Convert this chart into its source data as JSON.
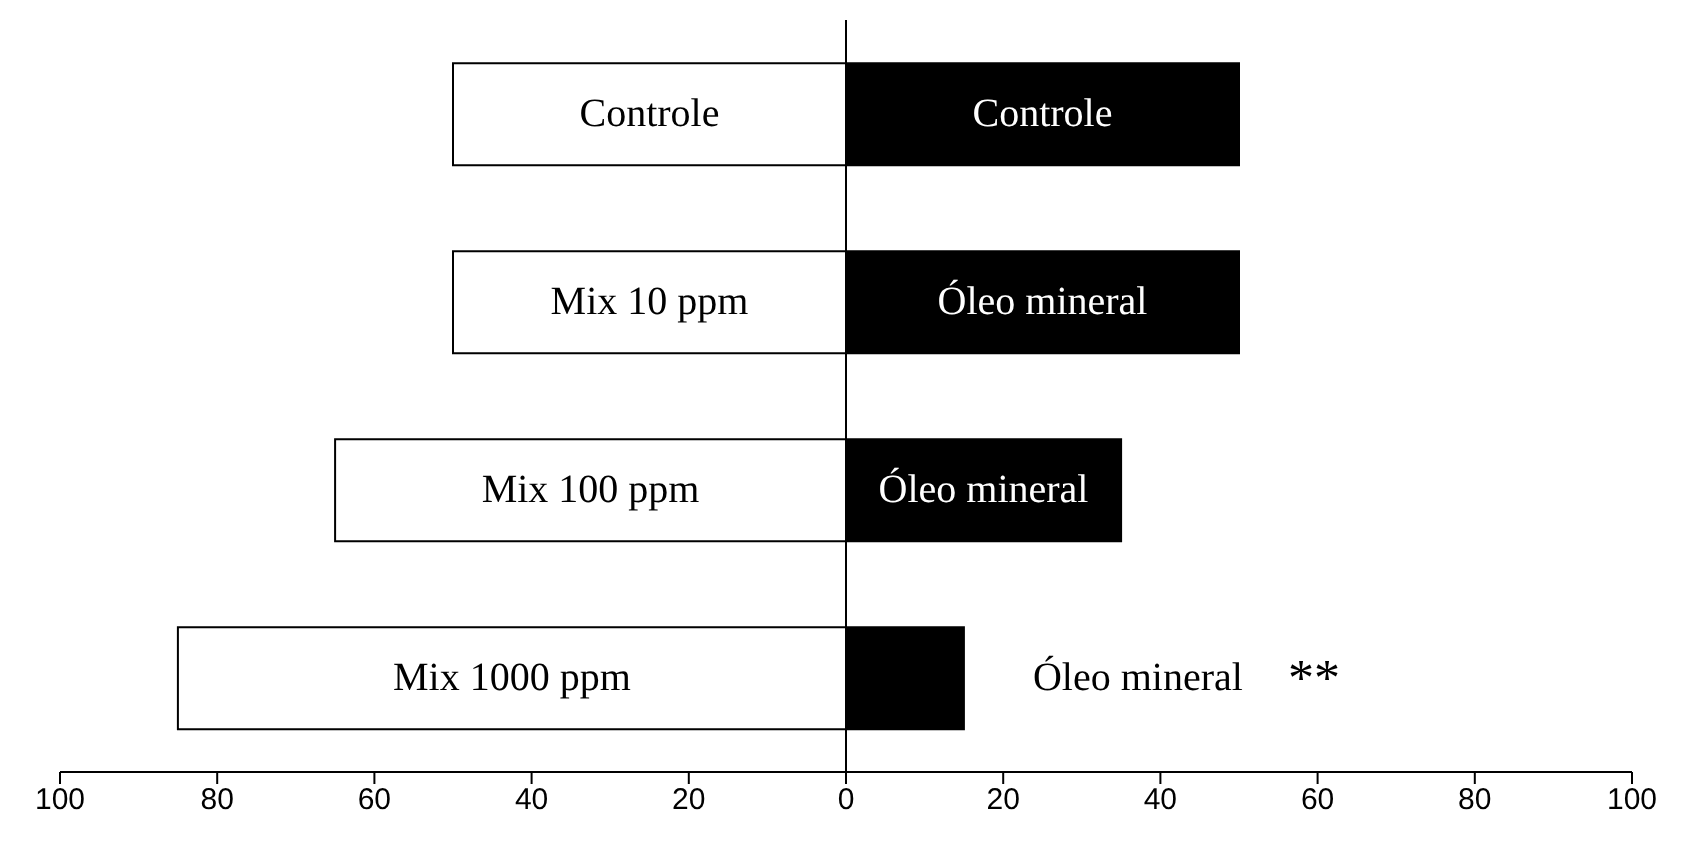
{
  "chart_data": {
    "type": "bar",
    "orientation": "horizontal",
    "stacked": true,
    "categories": [
      null,
      null,
      null,
      null
    ],
    "series": [
      {
        "color": "#ffffff",
        "values": [
          -50,
          -50,
          -65,
          -85
        ],
        "value_labels": [
          "Controle",
          "Mix 10 ppm",
          "Mix 100 ppm",
          "Mix 1000 ppm"
        ]
      },
      {
        "color": "#000000",
        "values": [
          50,
          50,
          35,
          15
        ],
        "value_labels": [
          "Controle",
          "Óleo mineral",
          "Óleo mineral",
          "Óleo mineral"
        ]
      }
    ],
    "xlim": [
      -100,
      100
    ],
    "xticks": [
      {
        "value": -100,
        "label": "100"
      },
      {
        "value": -80,
        "label": "80"
      },
      {
        "value": -60,
        "label": "60"
      },
      {
        "value": -40,
        "label": "40"
      },
      {
        "value": -20,
        "label": "20"
      },
      0,
      20,
      40,
      60,
      80,
      100
    ],
    "ref_lines": [
      {
        "axis": "x",
        "value": 0
      }
    ],
    "annotations": [
      "**"
    ],
    "grid": false,
    "legend": false
  }
}
